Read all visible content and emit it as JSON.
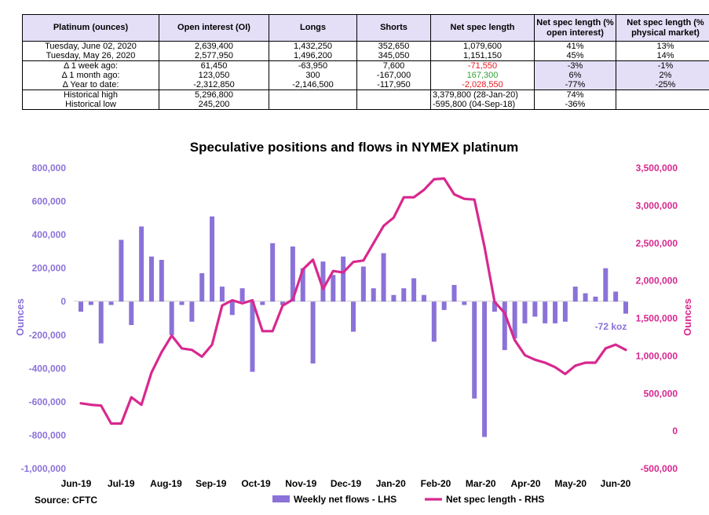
{
  "table": {
    "headers": [
      "Platinum (ounces)",
      "Open interest (OI)",
      "Longs",
      "Shorts",
      "Net spec length",
      "Net spec length (% open interest)",
      "Net spec length (% physical market)"
    ],
    "rows": [
      [
        "Tuesday, June 02, 2020",
        "2,639,400",
        "1,432,250",
        "352,650",
        "1,079,600",
        "41%",
        "13%"
      ],
      [
        "Tuesday, May 26, 2020",
        "2,577,950",
        "1,496,200",
        "345,050",
        "1,151,150",
        "45%",
        "14%"
      ],
      [
        "Δ 1 week ago:",
        "61,450",
        "-63,950",
        "7,600",
        "-71,550",
        "-3%",
        "-1%"
      ],
      [
        "Δ 1 month ago:",
        "123,050",
        "300",
        "-167,000",
        "167,300",
        "6%",
        "2%"
      ],
      [
        "Δ Year to date:",
        "-2,312,850",
        "-2,146,500",
        "-117,950",
        "-2,028,550",
        "-77%",
        "-25%"
      ],
      [
        "Historical high",
        "5,296,800",
        "",
        "",
        "3,379,800  (28-Jan-20)",
        "74%",
        ""
      ],
      [
        "Historical low",
        "245,200",
        "",
        "",
        "-595,800  (04-Sep-18)",
        "-36%",
        ""
      ]
    ]
  },
  "chart_data": {
    "type": "bar+line",
    "title": "Speculative positions and flows in NYMEX platinum",
    "ylabel_left": "Ounces",
    "ylabel_right": "Ounces",
    "ylim_left": [
      -1000000,
      800000
    ],
    "ylim_right": [
      -500000,
      3500000
    ],
    "yticks_left": [
      "800,000",
      "600,000",
      "400,000",
      "200,000",
      "0",
      "-200,000",
      "-400,000",
      "-600,000",
      "-800,000",
      "-1,000,000"
    ],
    "yticks_right": [
      "3,500,000",
      "3,000,000",
      "2,500,000",
      "2,000,000",
      "1,500,000",
      "1,000,000",
      "500,000",
      "0",
      "-500,000"
    ],
    "x_labels": [
      "Jun-19",
      "Jul-19",
      "Aug-19",
      "Sep-19",
      "Oct-19",
      "Nov-19",
      "Dec-19",
      "Jan-20",
      "Feb-20",
      "Mar-20",
      "Apr-20",
      "May-20",
      "Jun-20"
    ],
    "annotation": "-72 koz",
    "legend": [
      "Weekly net flows - LHS",
      "Net spec length - RHS"
    ],
    "legend_position": "bottom",
    "colors": {
      "bars": "#8b72d8",
      "line": "#d8288f"
    },
    "bar_values": [
      -60000,
      -20000,
      -250000,
      -20000,
      370000,
      -140000,
      450000,
      270000,
      250000,
      -200000,
      -20000,
      -120000,
      170000,
      510000,
      90000,
      -80000,
      80000,
      -420000,
      -20000,
      350000,
      -20000,
      330000,
      200000,
      -370000,
      240000,
      160000,
      270000,
      -180000,
      210000,
      80000,
      290000,
      40000,
      80000,
      140000,
      40000,
      -240000,
      -50000,
      100000,
      -20000,
      -580000,
      -810000,
      -60000,
      -290000,
      -220000,
      -130000,
      -90000,
      -130000,
      -130000,
      -120000,
      90000,
      50000,
      30000,
      200000,
      60000,
      -72000
    ],
    "line_values": [
      370000,
      350000,
      340000,
      100000,
      100000,
      450000,
      350000,
      780000,
      1050000,
      1270000,
      1100000,
      1080000,
      990000,
      1150000,
      1670000,
      1740000,
      1700000,
      1740000,
      1330000,
      1330000,
      1670000,
      1750000,
      2150000,
      2280000,
      1890000,
      2130000,
      2110000,
      2250000,
      2270000,
      2500000,
      2730000,
      2840000,
      3110000,
      3110000,
      3210000,
      3350000,
      3360000,
      3150000,
      3090000,
      3080000,
      2450000,
      1720000,
      1570000,
      1210000,
      1010000,
      950000,
      910000,
      850000,
      760000,
      870000,
      910000,
      910000,
      1100000,
      1150000,
      1080000
    ]
  },
  "source": "Source: CFTC"
}
